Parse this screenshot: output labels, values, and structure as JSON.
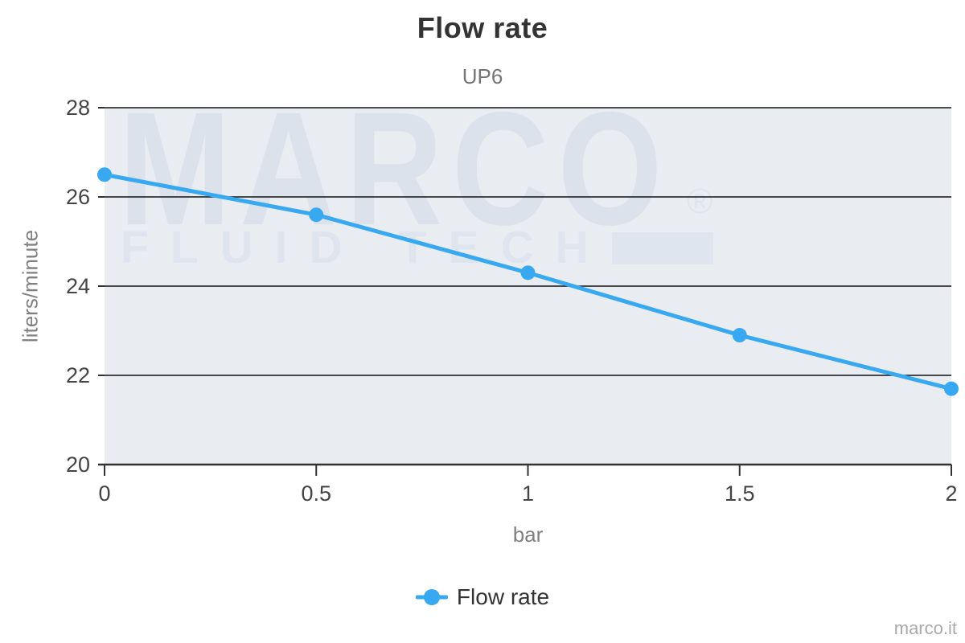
{
  "chart_data": {
    "type": "line",
    "title": "Flow rate",
    "subtitle": "UP6",
    "xlabel": "bar",
    "ylabel": "liters/minute",
    "x": [
      0,
      0.5,
      1,
      1.5,
      2
    ],
    "series": [
      {
        "name": "Flow rate",
        "values": [
          26.5,
          25.6,
          24.3,
          22.9,
          21.7
        ]
      }
    ],
    "xlim": [
      0,
      2
    ],
    "ylim": [
      20,
      28
    ],
    "x_ticks": [
      0,
      0.5,
      1,
      1.5,
      2
    ],
    "x_tick_labels": [
      "0",
      "0.5",
      "1",
      "1.5",
      "2"
    ],
    "y_ticks": [
      20,
      22,
      24,
      26,
      28
    ],
    "y_tick_labels": [
      "20",
      "22",
      "24",
      "26",
      "28"
    ],
    "grid": "horizontal",
    "legend_position": "bottom",
    "colors": {
      "line": "#38a8f1",
      "marker": "#38a8f1",
      "gridline": "#111111",
      "axis_line": "#333333",
      "plot_background": "#e9edf2",
      "title_text": "#333333",
      "tick_text": "#444444",
      "axis_title_text": "#808080"
    }
  },
  "legend": {
    "label": "Flow rate"
  },
  "watermark": {
    "word": "MARCO",
    "registered_mark": "®",
    "tagline": "FLUID TECH"
  },
  "footer": {
    "brand": "marco.it"
  }
}
